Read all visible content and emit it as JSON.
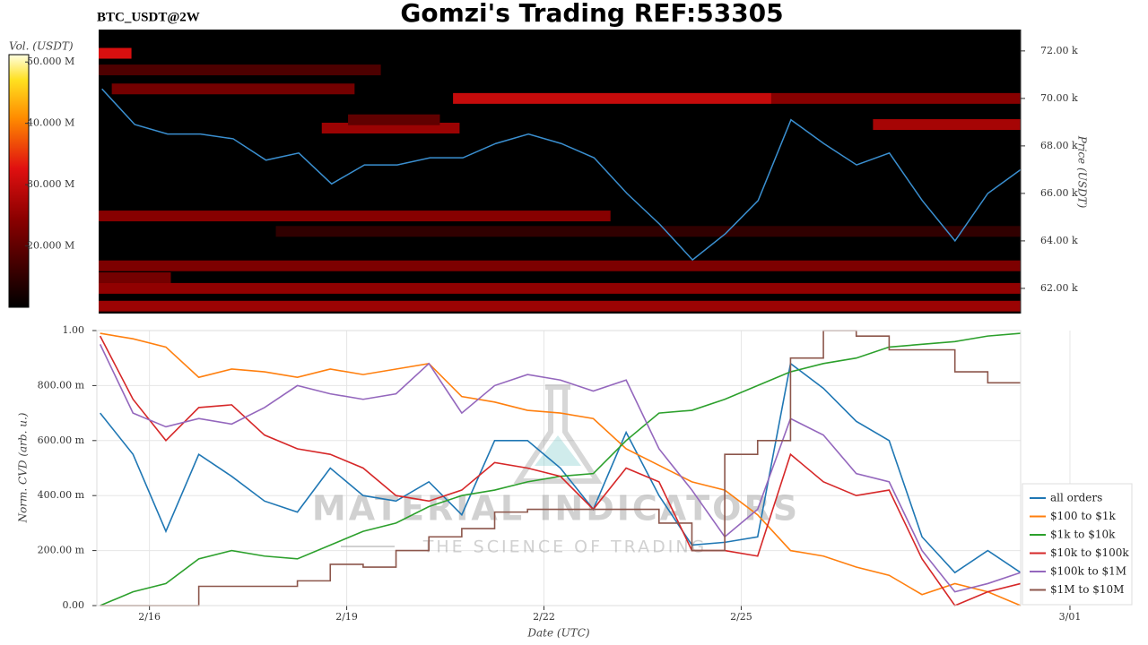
{
  "title": "Gomzi's Trading REF:53305",
  "watermark": {
    "title": "MATERIAL INDICATORS",
    "subtitle": "THE SCIENCE OF TRADING"
  },
  "chart_data": [
    {
      "type": "heatmap",
      "title": "BTC_USDT@2W",
      "ylabel": "Price (USDT)",
      "colorbar_label": "Vol. (USDT)",
      "xlim": [
        15.2,
        29.25
      ],
      "ylim": [
        60940,
        72900
      ],
      "yticks": [
        {
          "value": 62000,
          "label": "62.00 k"
        },
        {
          "value": 64000,
          "label": "64.00 k"
        },
        {
          "value": 66000,
          "label": "66.00 k"
        },
        {
          "value": 68000,
          "label": "68.00 k"
        },
        {
          "value": 70000,
          "label": "70.00 k"
        },
        {
          "value": 72000,
          "label": "72.00 k"
        }
      ],
      "clim": [
        10000000,
        51200000
      ],
      "cticks": [
        {
          "value": 20000000,
          "label": "20.000 M"
        },
        {
          "value": 30000000,
          "label": "30.000 M"
        },
        {
          "value": 40000000,
          "label": "40.000 M"
        },
        {
          "value": 50000000,
          "label": "50.000 M"
        }
      ],
      "bands": {
        "x0": [
          15.4,
          20.6,
          25.45,
          15.2,
          18.6,
          27.0,
          15.2,
          15.2,
          15.2,
          15.2,
          15.2,
          17.9,
          15.2,
          19.0
        ],
        "x1": [
          19.1,
          25.45,
          29.25,
          19.5,
          20.7,
          29.25,
          23.0,
          29.25,
          29.25,
          29.25,
          16.3,
          29.25,
          15.7,
          20.4
        ],
        "y": [
          70400,
          70000,
          70000,
          71200,
          68750,
          68900,
          65050,
          62950,
          62000,
          61250,
          62450,
          64400,
          71900,
          69100
        ],
        "values": [
          22000000,
          30000000,
          24000000,
          18000000,
          26000000,
          27000000,
          24000000,
          23000000,
          25000000,
          26000000,
          22000000,
          15000000,
          32000000,
          20000000
        ]
      },
      "x": [
        15.25,
        15.75,
        16.25,
        16.75,
        17.25,
        17.75,
        18.25,
        18.75,
        19.25,
        19.75,
        20.25,
        20.75,
        21.25,
        21.75,
        22.25,
        22.75,
        23.25,
        23.75,
        24.25,
        24.75,
        25.25,
        25.75,
        26.25,
        26.75,
        27.25,
        27.75,
        28.25,
        28.75,
        29.25
      ],
      "series": [
        {
          "color": "#3a8fd0",
          "values": [
            70400,
            68900,
            68500,
            68500,
            68300,
            67400,
            67700,
            66400,
            67200,
            67200,
            67500,
            67500,
            68100,
            68500,
            68100,
            67500,
            66000,
            64700,
            63200,
            64300,
            65700,
            69100,
            68100,
            67200,
            67700,
            65700,
            64000,
            66000,
            67000
          ]
        }
      ]
    },
    {
      "type": "line",
      "xlabel": "Date (UTC)",
      "ylabel": "Norm. CVD (arb. u.)",
      "grid": true,
      "legend": "right",
      "xlim": [
        15.2,
        29.25
      ],
      "ylim": [
        0,
        1
      ],
      "xticks": [
        {
          "value": 16,
          "label": "2/16"
        },
        {
          "value": 19,
          "label": "2/19"
        },
        {
          "value": 22,
          "label": "2/22"
        },
        {
          "value": 25,
          "label": "2/25"
        },
        {
          "value": 30,
          "label": "3/01"
        }
      ],
      "yticks": [
        {
          "value": 0,
          "label": "0.00"
        },
        {
          "value": 0.2,
          "label": "200.00 m"
        },
        {
          "value": 0.4,
          "label": "400.00 m"
        },
        {
          "value": 0.6,
          "label": "600.00 m"
        },
        {
          "value": 0.8,
          "label": "800.00 m"
        },
        {
          "value": 1,
          "label": "1.00"
        }
      ],
      "x": [
        15.25,
        15.75,
        16.25,
        16.75,
        17.25,
        17.75,
        18.25,
        18.75,
        19.25,
        19.75,
        20.25,
        20.75,
        21.25,
        21.75,
        22.25,
        22.75,
        23.25,
        23.75,
        24.25,
        24.75,
        25.25,
        25.75,
        26.25,
        26.75,
        27.25,
        27.75,
        28.25,
        28.75,
        29.25
      ],
      "series": [
        {
          "name": "all orders",
          "color": "#1f77b4",
          "values": [
            0.7,
            0.55,
            0.27,
            0.55,
            0.47,
            0.38,
            0.34,
            0.5,
            0.4,
            0.38,
            0.45,
            0.33,
            0.6,
            0.6,
            0.5,
            0.35,
            0.63,
            0.4,
            0.22,
            0.23,
            0.25,
            0.88,
            0.79,
            0.67,
            0.6,
            0.25,
            0.12,
            0.2,
            0.12
          ]
        },
        {
          "name": "$100 to $1k",
          "color": "#ff7f0e",
          "values": [
            0.99,
            0.97,
            0.94,
            0.83,
            0.86,
            0.85,
            0.83,
            0.86,
            0.84,
            0.86,
            0.88,
            0.76,
            0.74,
            0.71,
            0.7,
            0.68,
            0.57,
            0.51,
            0.45,
            0.42,
            0.33,
            0.2,
            0.18,
            0.14,
            0.11,
            0.04,
            0.08,
            0.05,
            0.0
          ]
        },
        {
          "name": "$1k to $10k",
          "color": "#2ca02c",
          "values": [
            0.0,
            0.05,
            0.08,
            0.17,
            0.2,
            0.18,
            0.17,
            0.22,
            0.27,
            0.3,
            0.36,
            0.4,
            0.42,
            0.45,
            0.47,
            0.48,
            0.6,
            0.7,
            0.71,
            0.75,
            0.8,
            0.85,
            0.88,
            0.9,
            0.94,
            0.95,
            0.96,
            0.98,
            0.99
          ]
        },
        {
          "name": "$10k to $100k",
          "color": "#d62728",
          "values": [
            0.98,
            0.75,
            0.6,
            0.72,
            0.73,
            0.62,
            0.57,
            0.55,
            0.5,
            0.4,
            0.38,
            0.42,
            0.52,
            0.5,
            0.47,
            0.35,
            0.5,
            0.45,
            0.2,
            0.2,
            0.18,
            0.55,
            0.45,
            0.4,
            0.42,
            0.17,
            0.0,
            0.05,
            0.08
          ]
        },
        {
          "name": "$100k to $1M",
          "color": "#9467bd",
          "values": [
            0.95,
            0.7,
            0.65,
            0.68,
            0.66,
            0.72,
            0.8,
            0.77,
            0.75,
            0.77,
            0.88,
            0.7,
            0.8,
            0.84,
            0.82,
            0.78,
            0.82,
            0.57,
            0.42,
            0.25,
            0.35,
            0.68,
            0.62,
            0.48,
            0.45,
            0.2,
            0.05,
            0.08,
            0.12
          ]
        },
        {
          "name": "$1M to $10M",
          "color": "#8c564b",
          "shape": "step",
          "values": [
            0,
            0,
            0,
            0.07,
            0.07,
            0.07,
            0.09,
            0.15,
            0.14,
            0.2,
            0.25,
            0.28,
            0.34,
            0.35,
            0.35,
            0.35,
            0.35,
            0.3,
            0.2,
            0.55,
            0.6,
            0.9,
            1.0,
            0.98,
            0.93,
            0.93,
            0.85,
            0.81,
            0.81
          ]
        }
      ]
    }
  ]
}
